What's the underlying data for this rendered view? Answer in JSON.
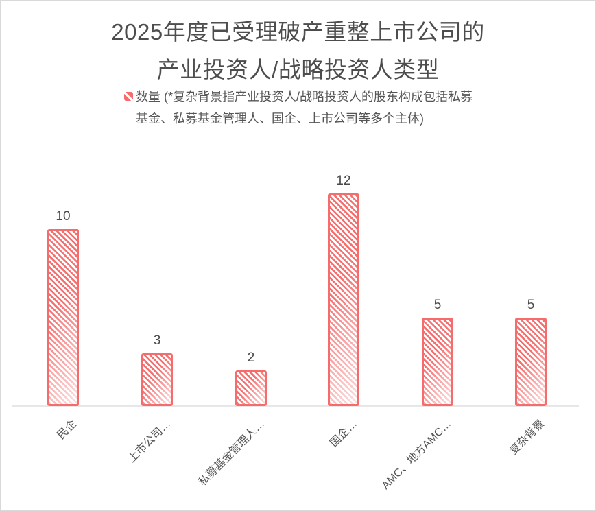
{
  "title": {
    "line1": "2025年度已受理破产重整上市公司的",
    "line2": "产业投资人/战略投资人类型"
  },
  "legend": {
    "series_name": "数量",
    "marker_icon": "hatched-red-square",
    "line1": "数量 (*复杂背景指产业投资人/战略投资人的股东构成包括私募",
    "line2": "基金、私募基金管理人、国企、上市公司等多个主体)"
  },
  "chart_data": {
    "type": "bar",
    "title": "2025年度已受理破产重整上市公司的产业投资人/战略投资人类型",
    "categories": [
      "民企",
      "上市公司…",
      "私募基金管理人…",
      "国企…",
      "AMC、地方AMC…",
      "复杂背景"
    ],
    "series": [
      {
        "name": "数量",
        "values": [
          10,
          3,
          2,
          12,
          5,
          5
        ]
      }
    ],
    "value_labels_shown": true,
    "xlabel": "",
    "ylabel": "",
    "ylim": [
      0,
      12.5
    ],
    "grid": false,
    "y_axis_shown": false,
    "legend_position": "top",
    "x_label_rotation_deg": 45,
    "bar_style": {
      "border_color": "#f56c6c",
      "fill_pattern": "diagonal-hatch",
      "hatch_color": "#f47070",
      "hatch_background": "#ffffff"
    }
  },
  "colors": {
    "accent_red": "#f56c6c",
    "title_text": "#4d4d4d",
    "legend_text": "#555555",
    "value_text": "#4a4a4a",
    "axis_line": "#e7e7e7",
    "canvas_border": "#d9d9d9",
    "background": "#ffffff"
  }
}
